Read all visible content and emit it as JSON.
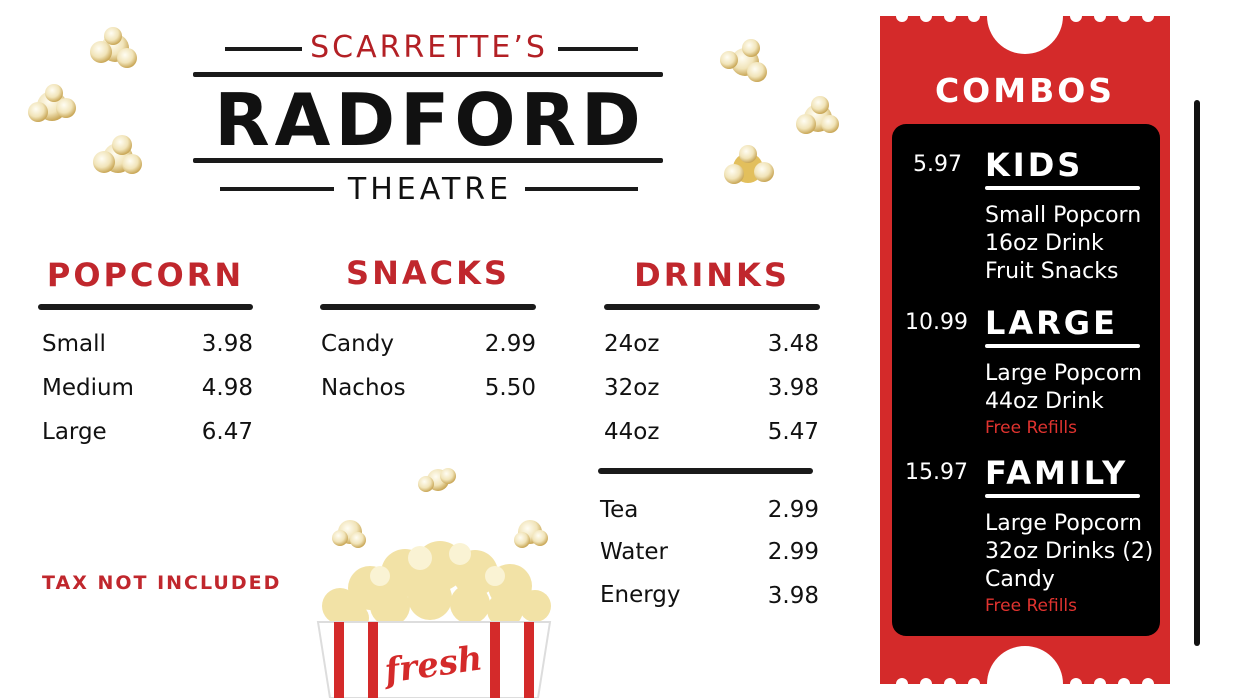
{
  "header": {
    "brand_top": "SCARRETTE’S",
    "brand_main": "RADFORD",
    "brand_sub": "THEATRE"
  },
  "popcorn": {
    "title": "POPCORN",
    "items": [
      {
        "name": "Small",
        "price": "3.98"
      },
      {
        "name": "Medium",
        "price": "4.98"
      },
      {
        "name": "Large",
        "price": "6.47"
      }
    ]
  },
  "snacks": {
    "title": "SNACKS",
    "items": [
      {
        "name": "Candy",
        "price": "2.99"
      },
      {
        "name": "Nachos",
        "price": "5.50"
      }
    ]
  },
  "drinks": {
    "title": "DRINKS",
    "items": [
      {
        "name": "24oz",
        "price": "3.48"
      },
      {
        "name": "32oz",
        "price": "3.98"
      },
      {
        "name": "44oz",
        "price": "5.47"
      }
    ],
    "extra_items": [
      {
        "name": "Tea",
        "price": "2.99"
      },
      {
        "name": "Water",
        "price": "2.99"
      },
      {
        "name": "Energy",
        "price": "3.98"
      }
    ]
  },
  "tax_note": "TAX NOT INCLUDED",
  "popcorn_box_label": "fresh",
  "combos": {
    "title": "COMBOS",
    "items": [
      {
        "price": "5.97",
        "name": "KIDS",
        "contents": [
          "Small Popcorn",
          "16oz Drink",
          "Fruit Snacks"
        ],
        "note": ""
      },
      {
        "price": "10.99",
        "name": "LARGE",
        "contents": [
          "Large Popcorn",
          "44oz Drink"
        ],
        "note": "Free Refills"
      },
      {
        "price": "15.97",
        "name": "FAMILY",
        "contents": [
          "Large Popcorn",
          "32oz Drinks (2)",
          "Candy"
        ],
        "note": "Free Refills"
      }
    ]
  },
  "colors": {
    "accent_red": "#c0272d",
    "ticket_red": "#d42a2a",
    "text_dark": "#111111"
  }
}
